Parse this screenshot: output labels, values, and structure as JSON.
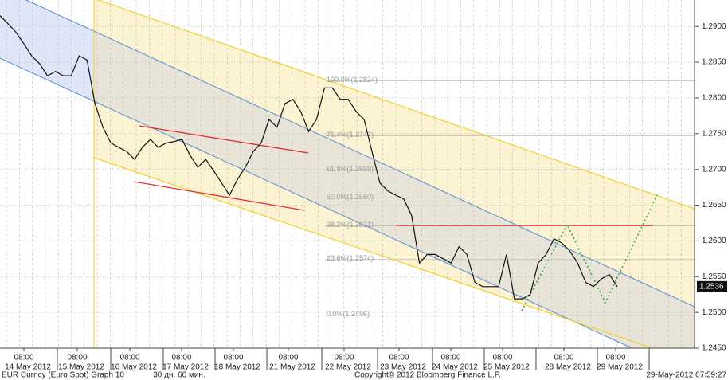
{
  "chart_data": {
    "type": "line",
    "color": "#111111",
    "values": [
      1.2915,
      1.2904,
      1.2892,
      1.2876,
      1.2859,
      1.2848,
      1.2831,
      1.2837,
      1.2831,
      1.2831,
      1.2859,
      1.2853,
      1.2792,
      1.2759,
      1.2737,
      1.2731,
      1.2725,
      1.2714,
      1.2731,
      1.2742,
      1.2731,
      1.2737,
      1.2739,
      1.2742,
      1.272,
      1.2703,
      1.2714,
      1.2698,
      1.2681,
      1.2664,
      1.2686,
      1.2703,
      1.2725,
      1.2737,
      1.277,
      1.2759,
      1.2792,
      1.2798,
      1.2781,
      1.2753,
      1.277,
      1.2814,
      1.2814,
      1.2798,
      1.2798,
      1.2781,
      1.277,
      1.2725,
      1.2681,
      1.267,
      1.2664,
      1.2659,
      1.2636,
      1.2569,
      1.2581,
      1.2581,
      1.2575,
      1.2569,
      1.2592,
      1.2581,
      1.2542,
      1.2536,
      1.2536,
      1.2536,
      1.2581,
      1.2519,
      1.2519,
      1.2525,
      1.2569,
      1.2581,
      1.2603,
      1.2597,
      1.2586,
      1.2569,
      1.2542,
      1.2536,
      1.2547,
      1.2553,
      1.2536
    ],
    "ylim": [
      1.245,
      1.2937
    ],
    "yticks": [
      {
        "value": 1.245,
        "label": "1.2450"
      },
      {
        "value": 1.25,
        "label": "1.2500"
      },
      {
        "value": 1.255,
        "label": "1.2550"
      },
      {
        "value": 1.26,
        "label": "1.2600"
      },
      {
        "value": 1.265,
        "label": "1.2650"
      },
      {
        "value": 1.27,
        "label": "1.2700"
      },
      {
        "value": 1.275,
        "label": "1.2750"
      },
      {
        "value": 1.28,
        "label": "1.2800"
      },
      {
        "value": 1.285,
        "label": "1.2850"
      },
      {
        "value": 1.29,
        "label": "1.2900"
      }
    ],
    "last_price": 1.2536,
    "fib_levels": [
      {
        "value": 1.2824,
        "label": "100.0%(1.2824)"
      },
      {
        "value": 1.2747,
        "label": "76.4%(1.2747)"
      },
      {
        "value": 1.2699,
        "label": "61.8%(1.2699)"
      },
      {
        "value": 1.266,
        "label": "50.0%(1.2660)"
      },
      {
        "value": 1.2621,
        "label": "38.2%(1.2621)"
      },
      {
        "value": 1.2574,
        "label": "23.6%(1.2574)"
      },
      {
        "value": 1.2496,
        "label": "0.0%(1.2496)"
      }
    ],
    "x_ticks": [
      {
        "time": "08:00",
        "date": "14 May 2012"
      },
      {
        "time": "08:00",
        "date": "15 May 2012"
      },
      {
        "time": "08:00",
        "date": "16 May 2012"
      },
      {
        "time": "08:00",
        "date": "17 May 2012"
      },
      {
        "time": "08:00",
        "date": "18 May 2012"
      },
      {
        "time": "08:00",
        "date": "21 May 2012"
      },
      {
        "time": "08:00",
        "date": "22 May 2012"
      },
      {
        "time": "08:00",
        "date": "23 May 2012"
      },
      {
        "time": "08:00",
        "date": "24 May 2012"
      },
      {
        "time": "08:00",
        "date": "25 May 2012"
      },
      {
        "time": "08:00",
        "date": "28 May 2012"
      },
      {
        "time": "08:00",
        "date": "29 May 2012"
      }
    ],
    "footer": {
      "security": "EUR Curncy (Euro Spot) Graph 10",
      "period": "30 дн. 60 мин.",
      "copyright": "Copyright© 2012 Bloomberg Finance L.P.",
      "timestamp": "29-May-2012 07:59:27"
    }
  }
}
